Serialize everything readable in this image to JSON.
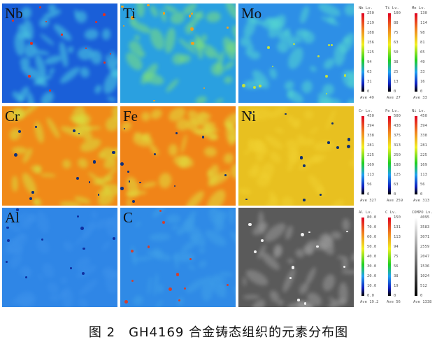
{
  "figure": {
    "maps": [
      {
        "label": "Nb",
        "base": "#1a5fd8",
        "spot": "#4fd0e0",
        "hot": "#e23020"
      },
      {
        "label": "Ti",
        "base": "#2aa0e0",
        "spot": "#7fe07a",
        "hot": "#f0a020"
      },
      {
        "label": "Mo",
        "base": "#2d8fe6",
        "spot": "#55d8d0",
        "hot": "#c0e040"
      },
      {
        "label": "Cr",
        "base": "#f08a18",
        "spot": "#d8e040",
        "hot": "#10307a"
      },
      {
        "label": "Fe",
        "base": "#f08418",
        "spot": "#e0e040",
        "hot": "#10307a"
      },
      {
        "label": "Ni",
        "base": "#e8c020",
        "spot": "#f0d030",
        "hot": "#103070"
      },
      {
        "label": "Al",
        "base": "#2f86e6",
        "spot": "#3b90ea",
        "hot": "#1030a0"
      },
      {
        "label": "C",
        "base": "#2f8ae6",
        "spot": "#40a0e8",
        "hot": "#d04030"
      },
      {
        "label": "",
        "base": "#5a5a5a",
        "spot": "#9a9a9a",
        "hot": "#f0f0f0"
      }
    ],
    "scales": [
      {
        "title": "Nb Lv.",
        "ticks": [
          "250",
          "219",
          "188",
          "156",
          "125",
          "94",
          "63",
          "31",
          "0"
        ],
        "ave": "Ave 49",
        "type": "color"
      },
      {
        "title": "Ti Lv.",
        "ticks": [
          "100",
          "88",
          "75",
          "63",
          "50",
          "38",
          "25",
          "13",
          "0"
        ],
        "ave": "Ave 27",
        "type": "color"
      },
      {
        "title": "Mo Lv.",
        "ticks": [
          "130",
          "114",
          "98",
          "81",
          "65",
          "49",
          "33",
          "16",
          "0"
        ],
        "ave": "Ave 33",
        "type": "color"
      },
      {
        "title": "Cr Lv.",
        "ticks": [
          "450",
          "394",
          "338",
          "281",
          "225",
          "169",
          "113",
          "56",
          "0"
        ],
        "ave": "Ave 327",
        "type": "color"
      },
      {
        "title": "Fe Lv.",
        "ticks": [
          "500",
          "438",
          "375",
          "313",
          "250",
          "188",
          "125",
          "63",
          "0"
        ],
        "ave": "Ave 259",
        "type": "color"
      },
      {
        "title": "Ni Lv.",
        "ticks": [
          "450",
          "394",
          "338",
          "281",
          "225",
          "169",
          "113",
          "56",
          "0"
        ],
        "ave": "Ave 313",
        "type": "color"
      },
      {
        "title": "Al Lv.",
        "ticks": [
          "80.0",
          "70.0",
          "60.0",
          "50.0",
          "40.0",
          "30.0",
          "20.0",
          "10.0",
          "0.0"
        ],
        "ave": "Ave 19.2",
        "type": "color"
      },
      {
        "title": "C Lv.",
        "ticks": [
          "150",
          "131",
          "113",
          "94",
          "75",
          "56",
          "38",
          "19",
          "0"
        ],
        "ave": "Ave 56",
        "type": "color"
      },
      {
        "title": "COMPO Lv.",
        "ticks": [
          "4095",
          "3583",
          "3071",
          "2559",
          "2047",
          "1536",
          "1024",
          "512",
          "0"
        ],
        "ave": "Ave 1338",
        "type": "gray"
      }
    ],
    "caption": "图 2　GH4169 合金铸态组织的元素分布图"
  }
}
